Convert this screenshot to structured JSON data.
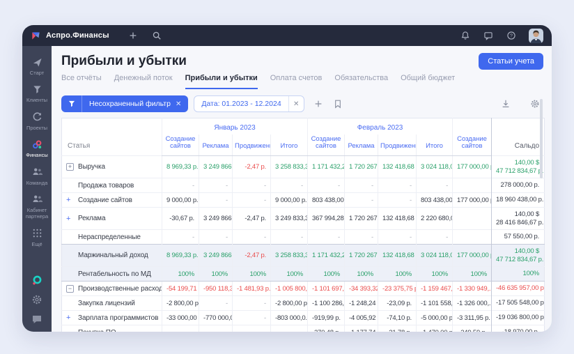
{
  "topbar": {
    "app_name": "Аспро.Финансы",
    "left_icons": [
      "plus-icon",
      "search-icon"
    ],
    "right_icons": [
      "bell-icon",
      "chat-icon",
      "help-icon"
    ],
    "avatar": "user-avatar"
  },
  "sidebar": {
    "items": [
      {
        "id": "start",
        "label": "Старт",
        "icon": "rocket-icon",
        "active": false
      },
      {
        "id": "clients",
        "label": "Клиенты",
        "icon": "funnel-icon",
        "active": false
      },
      {
        "id": "projects",
        "label": "Проекты",
        "icon": "refresh-icon",
        "active": false
      },
      {
        "id": "finance",
        "label": "Финансы",
        "icon": "finance-logo-icon",
        "active": true
      },
      {
        "id": "team",
        "label": "Команда",
        "icon": "people-icon",
        "active": false
      },
      {
        "id": "partner",
        "label": "Кабинет партнера",
        "icon": "people-icon",
        "active": false
      },
      {
        "id": "more",
        "label": "Ещё",
        "icon": "grid-dots-icon",
        "active": false
      }
    ],
    "bottom_icons": [
      "product-logo-icon",
      "gear-icon",
      "chat-bubble-icon"
    ]
  },
  "page": {
    "title": "Прибыли и убытки",
    "primary_button": "Статьи учета"
  },
  "tabs": [
    {
      "label": "Все отчёты",
      "active": false
    },
    {
      "label": "Денежный поток",
      "active": false
    },
    {
      "label": "Прибыли и убытки",
      "active": true
    },
    {
      "label": "Оплата счетов",
      "active": false
    },
    {
      "label": "Обязательства",
      "active": false
    },
    {
      "label": "Общий бюджет",
      "active": false
    }
  ],
  "filters": {
    "unsaved_chip": "Несохраненный фильтр",
    "date_chip": "Дата: 01.2023 - 12.2024",
    "icons": [
      "filter-icon",
      "add-filter-icon",
      "bookmark-icon",
      "download-icon",
      "settings-icon"
    ]
  },
  "colors": {
    "accent": "#3f68ee",
    "positive": "#2aa06a",
    "negative": "#ea4c4c",
    "topbar": "#252a3c",
    "sidebar": "#3d4357"
  },
  "table": {
    "article_header": "Статья",
    "saldo_header": "Сальдо",
    "month_groups": [
      {
        "label": "Январь 2023",
        "subcols": [
          "Создание сайтов",
          "Реклама",
          "Продвижение",
          "Итого"
        ]
      },
      {
        "label": "Февраль 2023",
        "subcols": [
          "Создание сайтов",
          "Реклама",
          "Продвижение",
          "Итого"
        ]
      }
    ],
    "extra_col": {
      "label": "Создание сайтов"
    },
    "rows": [
      {
        "id": "revenue",
        "name": "Выручка",
        "glyph": "plus-square",
        "cells": [
          [
            "8 969,33 р.",
            "g"
          ],
          [
            "3 249 866,4...",
            "g"
          ],
          [
            "-2,47 р.",
            "r"
          ],
          [
            "3 258 833,3...",
            "g"
          ],
          [
            "1 171 432,2...",
            "g"
          ],
          [
            "1 720 267,0...",
            "g"
          ],
          [
            "132 418,68 р.",
            "g"
          ],
          [
            "3 024 118,0...",
            "g"
          ],
          [
            "177 000,00 р.",
            "g"
          ]
        ],
        "saldo": {
          "lines": [
            "140,00 $",
            "47 712 834,67 р."
          ],
          "c": "g"
        }
      },
      {
        "id": "goods-sale",
        "name": "Продажа товаров",
        "glyph": "none",
        "cells": [
          [
            "-",
            "m"
          ],
          [
            "-",
            "m"
          ],
          [
            "-",
            "m"
          ],
          [
            "-",
            "m"
          ],
          [
            "-",
            "m"
          ],
          [
            "-",
            "m"
          ],
          [
            "-",
            "m"
          ],
          [
            "-",
            "m"
          ],
          [
            "",
            "d"
          ]
        ],
        "saldo": {
          "lines": [
            "278 000,00 р."
          ],
          "c": "d"
        }
      },
      {
        "id": "site-creation",
        "name": "Создание сайтов",
        "glyph": "plus",
        "cells": [
          [
            "9 000,00 р.",
            "d"
          ],
          [
            "-",
            "m"
          ],
          [
            "-",
            "m"
          ],
          [
            "9 000,00 р.",
            "d"
          ],
          [
            "803 438,00 р.",
            "d"
          ],
          [
            "-",
            "m"
          ],
          [
            "-",
            "m"
          ],
          [
            "803 438,00 р.",
            "d"
          ],
          [
            "177 000,00 р.",
            "d"
          ]
        ],
        "saldo": {
          "lines": [
            "18 960 438,00 р."
          ],
          "c": "d"
        }
      },
      {
        "id": "ads",
        "name": "Реклама",
        "glyph": "plus",
        "cells": [
          [
            "-30,67 р.",
            "d"
          ],
          [
            "3 249 866,4...",
            "d"
          ],
          [
            "-2,47 р.",
            "d"
          ],
          [
            "3 249 833,3...",
            "d"
          ],
          [
            "367 994,28 р.",
            "d"
          ],
          [
            "1 720 267,0...",
            "d"
          ],
          [
            "132 418,68 р.",
            "d"
          ],
          [
            "2 220 680,0...",
            "d"
          ],
          [
            "",
            "d"
          ]
        ],
        "saldo": {
          "lines": [
            "140,00 $",
            "28 416 846,67 р."
          ],
          "c": "d"
        }
      },
      {
        "id": "unallocated",
        "name": "Нераспределенные",
        "glyph": "none",
        "cells": [
          [
            "-",
            "m"
          ],
          [
            "-",
            "m"
          ],
          [
            "-",
            "m"
          ],
          [
            "-",
            "m"
          ],
          [
            "-",
            "m"
          ],
          [
            "-",
            "m"
          ],
          [
            "-",
            "m"
          ],
          [
            "-",
            "m"
          ],
          [
            "",
            "d"
          ]
        ],
        "saldo": {
          "lines": [
            "57 550,00 р."
          ],
          "c": "d"
        }
      },
      {
        "id": "margin-income",
        "name": "Маржинальный доход",
        "glyph": "none",
        "summary": true,
        "strongTop": true,
        "cells": [
          [
            "8 969,33 р.",
            "g"
          ],
          [
            "3 249 866,4...",
            "g"
          ],
          [
            "-2,47 р.",
            "r"
          ],
          [
            "3 258 833,3...",
            "g"
          ],
          [
            "1 171 432,2...",
            "g"
          ],
          [
            "1 720 267,0...",
            "g"
          ],
          [
            "132 418,68 р.",
            "g"
          ],
          [
            "3 024 118,0...",
            "g"
          ],
          [
            "177 000,00 р.",
            "g"
          ]
        ],
        "saldo": {
          "lines": [
            "140,00 $",
            "47 712 834,67 р."
          ],
          "c": "g"
        }
      },
      {
        "id": "md-profitability",
        "name": "Рентабельность по МД",
        "glyph": "none",
        "summary": true,
        "cells": [
          [
            "100%",
            "g"
          ],
          [
            "100%",
            "g"
          ],
          [
            "100%",
            "g"
          ],
          [
            "100%",
            "g"
          ],
          [
            "100%",
            "g"
          ],
          [
            "100%",
            "g"
          ],
          [
            "100%",
            "g"
          ],
          [
            "100%",
            "g"
          ],
          [
            "100%",
            "g"
          ]
        ],
        "saldo": {
          "lines": [
            "100%"
          ],
          "c": "g"
        }
      },
      {
        "id": "production-costs",
        "name": "Производственные расходы",
        "glyph": "minus-square",
        "strongTop": true,
        "cells": [
          [
            "-54 199,71 р.",
            "r"
          ],
          [
            "-950 118,3...",
            "r"
          ],
          [
            "-1 481,93 р.",
            "r"
          ],
          [
            "-1 005 800,...",
            "r"
          ],
          [
            "-1 101 697,...",
            "r"
          ],
          [
            "-34 393,32 р.",
            "r"
          ],
          [
            "-23 375,75 р.",
            "r"
          ],
          [
            "-1 159 467,...",
            "r"
          ],
          [
            "-1 330 949,...",
            "r"
          ]
        ],
        "saldo": {
          "lines": [
            "-46 635 957,00 р."
          ],
          "c": "r"
        }
      },
      {
        "id": "license-purchase",
        "name": "Закупка лицензий",
        "glyph": "none",
        "cells": [
          [
            "-2 800,00 р.",
            "d"
          ],
          [
            "-",
            "m"
          ],
          [
            "-",
            "m"
          ],
          [
            "-2 800,00 р.",
            "d"
          ],
          [
            "-1 100 286,...",
            "d"
          ],
          [
            "-1 248,24 р.",
            "d"
          ],
          [
            "-23,09 р.",
            "d"
          ],
          [
            "-1 101 558,...",
            "d"
          ],
          [
            "-1 326 000,...",
            "d"
          ]
        ],
        "saldo": {
          "lines": [
            "-17 505 548,00 р."
          ],
          "c": "d"
        }
      },
      {
        "id": "dev-salary",
        "name": "Зарплата программистов",
        "glyph": "plus",
        "cells": [
          [
            "-33 000,00 р.",
            "d"
          ],
          [
            "-770 000,0...",
            "d"
          ],
          [
            "-",
            "m"
          ],
          [
            "-803 000,0...",
            "d"
          ],
          [
            "-919,99 р.",
            "d"
          ],
          [
            "-4 005,92 р.",
            "d"
          ],
          [
            "-74,10 р.",
            "d"
          ],
          [
            "-5 000,00 р.",
            "d"
          ],
          [
            "-3 311,95 р.",
            "d"
          ]
        ],
        "saldo": {
          "lines": [
            "-19 036 800,00 р."
          ],
          "c": "d"
        }
      },
      {
        "id": "software-purchase",
        "name": "Покупка ПО",
        "glyph": "none",
        "cells": [
          [
            "-",
            "m"
          ],
          [
            "-",
            "m"
          ],
          [
            "-",
            "m"
          ],
          [
            "-",
            "m"
          ],
          [
            "-270,48 р.",
            "d"
          ],
          [
            "-1 177,74 р.",
            "d"
          ],
          [
            "-21,78 р.",
            "d"
          ],
          [
            "-1 470,00 р.",
            "d"
          ],
          [
            "-349,59 р.",
            "d"
          ]
        ],
        "saldo": {
          "lines": [
            "-18 970,00 р."
          ],
          "c": "d"
        }
      }
    ]
  }
}
